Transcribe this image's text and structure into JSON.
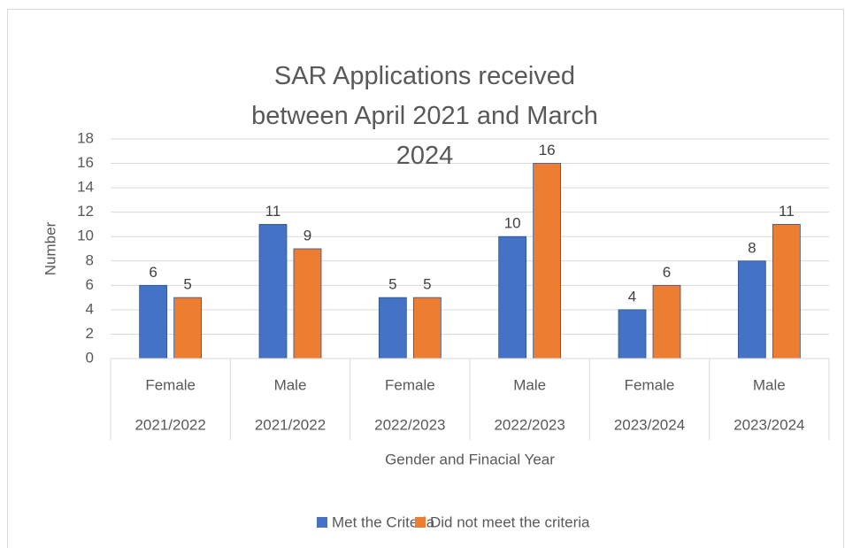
{
  "chart_data": {
    "type": "bar",
    "title": "SAR Applications received between April 2021 and March 2024",
    "y_label": "Number",
    "x_label": "Gender and Finacial Year",
    "categories": [
      "Female",
      "Male",
      "Female",
      "Male",
      "Female",
      "Male"
    ],
    "category_groups": [
      "2021/2022",
      "2021/2022",
      "2022/2023",
      "2022/2023",
      "2023/2024",
      "2023/2024"
    ],
    "series": [
      {
        "name": "Met the Criteria",
        "color": "#4472c4",
        "values": [
          6,
          11,
          5,
          10,
          4,
          8
        ]
      },
      {
        "name": "Did not meet the criteria",
        "color": "#ed7d31",
        "values": [
          5,
          9,
          5,
          16,
          6,
          11
        ]
      }
    ],
    "ylim": [
      0,
      18
    ],
    "yticks": [
      0,
      2,
      4,
      6,
      8,
      10,
      12,
      14,
      16,
      18
    ],
    "grid": true,
    "legend": "bottom"
  }
}
